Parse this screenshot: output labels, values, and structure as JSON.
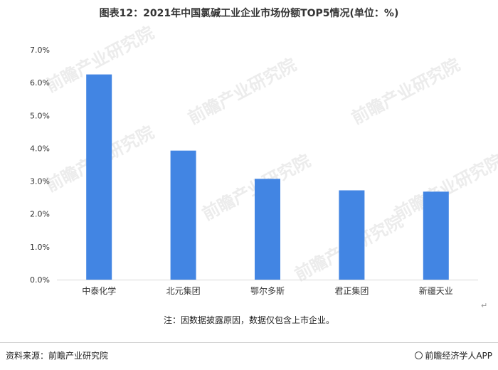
{
  "title": "图表12：2021年中国氯碱工业企业市场份额TOP5情况(单位：%)",
  "note": "注：因数据披露原因，数据仅包含上市企业。",
  "footer": {
    "source": "资料来源：前瞻产业研究院",
    "brand": "前瞻经济学人APP"
  },
  "watermark_text": "前瞻产业研究院",
  "colors": {
    "bar": "#4285E3",
    "axis": "#d9d9d9",
    "text": "#333333"
  },
  "chart_data": {
    "type": "bar",
    "categories": [
      "中泰化学",
      "北元集团",
      "鄂尔多斯",
      "君正集团",
      "新疆天业"
    ],
    "values": [
      6.25,
      3.93,
      3.07,
      2.72,
      2.68
    ],
    "ylim": [
      0,
      7
    ],
    "yticks": [
      0,
      1,
      2,
      3,
      4,
      5,
      6,
      7
    ],
    "ytick_labels": [
      "0.0%",
      "1.0%",
      "2.0%",
      "3.0%",
      "4.0%",
      "5.0%",
      "6.0%",
      "7.0%"
    ],
    "grid": false,
    "legend": "none"
  }
}
